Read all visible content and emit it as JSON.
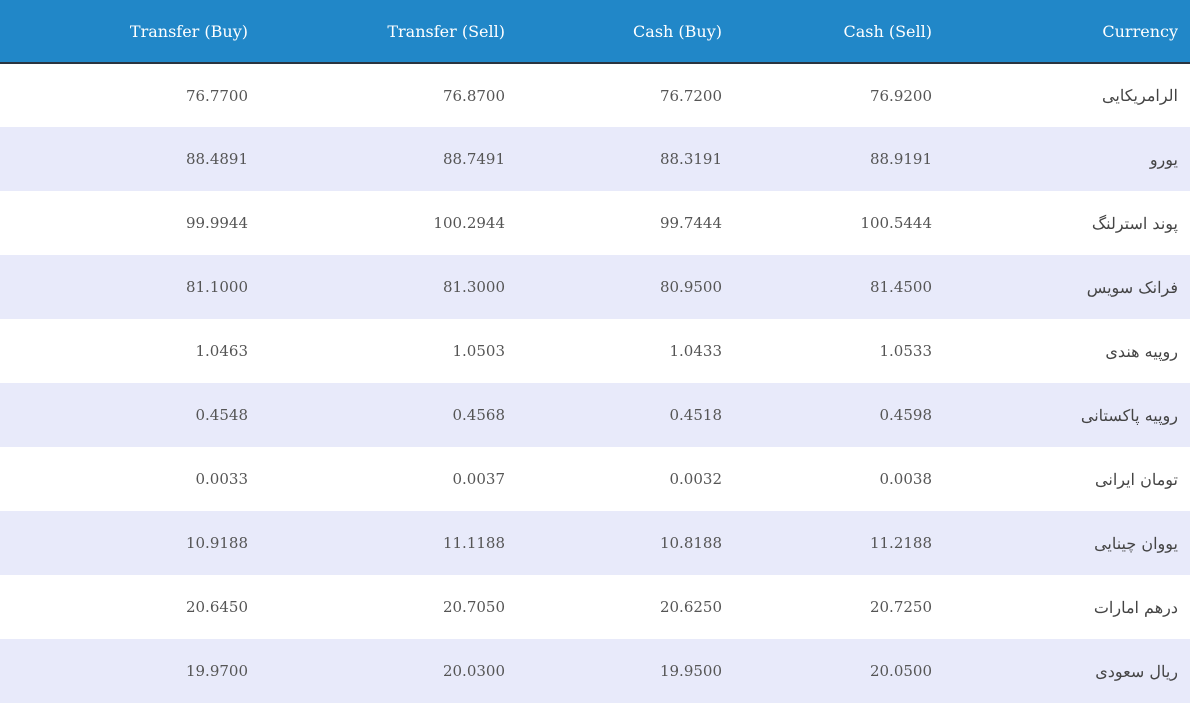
{
  "table": {
    "headers": [
      "Transfer (Buy)",
      "Transfer (Sell)",
      "Cash (Buy)",
      "Cash (Sell)",
      "Currency"
    ],
    "rows": [
      {
        "transfer_buy": "76.7700",
        "transfer_sell": "76.8700",
        "cash_buy": "76.7200",
        "cash_sell": "76.9200",
        "currency": "الرامریکایی"
      },
      {
        "transfer_buy": "88.4891",
        "transfer_sell": "88.7491",
        "cash_buy": "88.3191",
        "cash_sell": "88.9191",
        "currency": "یورو"
      },
      {
        "transfer_buy": "99.9944",
        "transfer_sell": "100.2944",
        "cash_buy": "99.7444",
        "cash_sell": "100.5444",
        "currency": "پوند استرلنگ"
      },
      {
        "transfer_buy": "81.1000",
        "transfer_sell": "81.3000",
        "cash_buy": "80.9500",
        "cash_sell": "81.4500",
        "currency": "فرانک سویس"
      },
      {
        "transfer_buy": "1.0463",
        "transfer_sell": "1.0503",
        "cash_buy": "1.0433",
        "cash_sell": "1.0533",
        "currency": "روپیه هندی"
      },
      {
        "transfer_buy": "0.4548",
        "transfer_sell": "0.4568",
        "cash_buy": "0.4518",
        "cash_sell": "0.4598",
        "currency": "روپیه پاکستانی"
      },
      {
        "transfer_buy": "0.0033",
        "transfer_sell": "0.0037",
        "cash_buy": "0.0032",
        "cash_sell": "0.0038",
        "currency": "تومان ایرانی"
      },
      {
        "transfer_buy": "10.9188",
        "transfer_sell": "11.1188",
        "cash_buy": "10.8188",
        "cash_sell": "11.2188",
        "currency": "یووان چینایی"
      },
      {
        "transfer_buy": "20.6450",
        "transfer_sell": "20.7050",
        "cash_buy": "20.6250",
        "cash_sell": "20.7250",
        "currency": "درهم امارات"
      },
      {
        "transfer_buy": "19.9700",
        "transfer_sell": "20.0300",
        "cash_buy": "19.9500",
        "cash_sell": "20.0500",
        "currency": "ریال سعودی"
      }
    ]
  },
  "colors": {
    "header_bg": "#2187c8",
    "header_text": "#ffffff",
    "row_alt_bg": "#e8eafa",
    "row_bg": "#ffffff",
    "cell_text": "#555555"
  }
}
